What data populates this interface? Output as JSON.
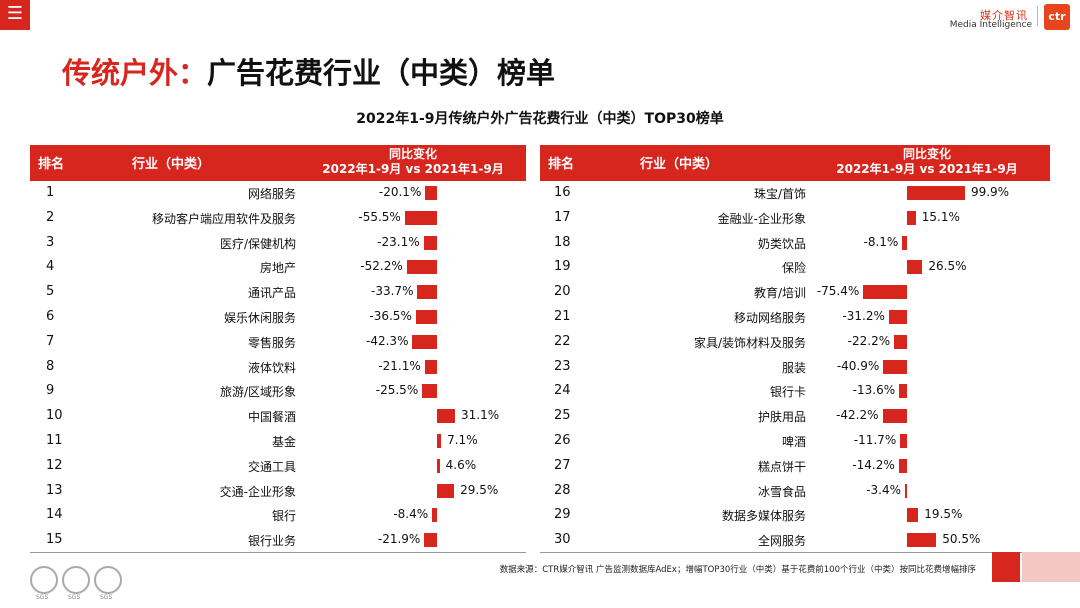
{
  "topbar": {
    "menu_glyph": "☰",
    "logo_cn": "媒介智讯",
    "logo_en": "Media Intelligence",
    "logo_mark": "ctr"
  },
  "title": {
    "prefix": "传统户外：",
    "rest": "广告花费行业（中类）榜单"
  },
  "chart_title": "2022年1-9月传统户外广告花费行业（中类）TOP30榜单",
  "header": {
    "rank": "排名",
    "industry": "行业（中类）",
    "change_line1": "同比变化",
    "change_line2": "2022年1-9月 vs 2021年1-9月"
  },
  "chart_data": {
    "type": "bar",
    "title": "2022年1-9月传统户外广告花费行业（中类）TOP30榜单",
    "unit": "%",
    "axis": "diverging, zero-centered",
    "range": [
      -75.4,
      99.9
    ],
    "rows_left": [
      {
        "rank": "1",
        "industry": "网络服务",
        "value": -20.1,
        "label": "-20.1%"
      },
      {
        "rank": "2",
        "industry": "移动客户端应用软件及服务",
        "value": -55.5,
        "label": "-55.5%"
      },
      {
        "rank": "3",
        "industry": "医疗/保健机构",
        "value": -23.1,
        "label": "-23.1%"
      },
      {
        "rank": "4",
        "industry": "房地产",
        "value": -52.2,
        "label": "-52.2%"
      },
      {
        "rank": "5",
        "industry": "通讯产品",
        "value": -33.7,
        "label": "-33.7%"
      },
      {
        "rank": "6",
        "industry": "娱乐休闲服务",
        "value": -36.5,
        "label": "-36.5%"
      },
      {
        "rank": "7",
        "industry": "零售服务",
        "value": -42.3,
        "label": "-42.3%"
      },
      {
        "rank": "8",
        "industry": "液体饮料",
        "value": -21.1,
        "label": "-21.1%"
      },
      {
        "rank": "9",
        "industry": "旅游/区域形象",
        "value": -25.5,
        "label": "-25.5%"
      },
      {
        "rank": "10",
        "industry": "中国餐酒",
        "value": 31.1,
        "label": "31.1%"
      },
      {
        "rank": "11",
        "industry": "基金",
        "value": 7.1,
        "label": "7.1%"
      },
      {
        "rank": "12",
        "industry": "交通工具",
        "value": 4.6,
        "label": "4.6%"
      },
      {
        "rank": "13",
        "industry": "交通-企业形象",
        "value": 29.5,
        "label": "29.5%"
      },
      {
        "rank": "14",
        "industry": "银行",
        "value": -8.4,
        "label": "-8.4%"
      },
      {
        "rank": "15",
        "industry": "银行业务",
        "value": -21.9,
        "label": "-21.9%"
      }
    ],
    "rows_right": [
      {
        "rank": "16",
        "industry": "珠宝/首饰",
        "value": 99.9,
        "label": "99.9%"
      },
      {
        "rank": "17",
        "industry": "金融业-企业形象",
        "value": 15.1,
        "label": "15.1%"
      },
      {
        "rank": "18",
        "industry": "奶类饮品",
        "value": -8.1,
        "label": "-8.1%"
      },
      {
        "rank": "19",
        "industry": "保险",
        "value": 26.5,
        "label": "26.5%"
      },
      {
        "rank": "20",
        "industry": "教育/培训",
        "value": -75.4,
        "label": "-75.4%"
      },
      {
        "rank": "21",
        "industry": "移动网络服务",
        "value": -31.2,
        "label": "-31.2%"
      },
      {
        "rank": "22",
        "industry": "家具/装饰材料及服务",
        "value": -22.2,
        "label": "-22.2%"
      },
      {
        "rank": "23",
        "industry": "服装",
        "value": -40.9,
        "label": "-40.9%"
      },
      {
        "rank": "24",
        "industry": "银行卡",
        "value": -13.6,
        "label": "-13.6%"
      },
      {
        "rank": "25",
        "industry": "护肤用品",
        "value": -42.2,
        "label": "-42.2%"
      },
      {
        "rank": "26",
        "industry": "啤酒",
        "value": -11.7,
        "label": "-11.7%"
      },
      {
        "rank": "27",
        "industry": "糕点饼干",
        "value": -14.2,
        "label": "-14.2%"
      },
      {
        "rank": "28",
        "industry": "冰雪食品",
        "value": -3.4,
        "label": "-3.4%"
      },
      {
        "rank": "29",
        "industry": "数据多媒体服务",
        "value": 19.5,
        "label": "19.5%"
      },
      {
        "rank": "30",
        "industry": "全网服务",
        "value": 50.5,
        "label": "50.5%"
      }
    ]
  },
  "footer": {
    "source": "数据来源：CTR媒介智讯 广告监测数据库AdEx；增幅TOP30行业（中类）基于花费前100个行业（中类）按同比花费增幅排序",
    "sgs_label": "SGS"
  },
  "colors": {
    "accent": "#d7261e",
    "bar": "#d7261e"
  }
}
